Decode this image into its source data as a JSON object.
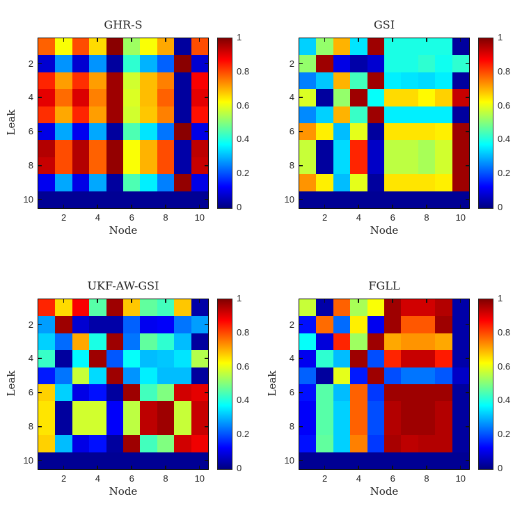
{
  "figure": {
    "background": "#ffffff",
    "axis_color": "#262626",
    "colormap": "jet",
    "x_ticks": [
      2,
      4,
      6,
      8,
      10
    ],
    "y_ticks": [
      2,
      4,
      6,
      8,
      10
    ],
    "colorbar_ticks": [
      {
        "value": 0,
        "label": "0"
      },
      {
        "value": 0.2,
        "label": "0.2"
      },
      {
        "value": 0.4,
        "label": "0.4"
      },
      {
        "value": 0.6,
        "label": "0.6"
      },
      {
        "value": 0.8,
        "label": "0.8"
      },
      {
        "value": 1,
        "label": "1"
      }
    ]
  },
  "chart_data": [
    {
      "type": "heatmap",
      "title": "GHR-S",
      "xlabel": "Node",
      "ylabel": "Leak",
      "x_range": [
        1,
        10
      ],
      "y_range": [
        1,
        10
      ],
      "zlim": [
        0,
        1
      ],
      "colormap": "jet",
      "values": [
        [
          0.78,
          0.62,
          0.8,
          0.66,
          0.99,
          0.53,
          0.62,
          0.71,
          0.03,
          0.8
        ],
        [
          0.08,
          0.27,
          0.08,
          0.27,
          0.03,
          0.42,
          0.3,
          0.22,
          0.99,
          0.08
        ],
        [
          0.84,
          0.72,
          0.83,
          0.72,
          0.97,
          0.58,
          0.69,
          0.75,
          0.03,
          0.88
        ],
        [
          0.9,
          0.77,
          0.91,
          0.75,
          0.97,
          0.59,
          0.69,
          0.78,
          0.03,
          0.9
        ],
        [
          0.83,
          0.71,
          0.84,
          0.72,
          0.97,
          0.58,
          0.68,
          0.75,
          0.03,
          0.86
        ],
        [
          0.1,
          0.29,
          0.11,
          0.29,
          0.03,
          0.45,
          0.35,
          0.24,
          0.99,
          0.1
        ],
        [
          0.95,
          0.8,
          0.95,
          0.78,
          0.98,
          0.62,
          0.7,
          0.8,
          0.04,
          0.94
        ],
        [
          0.93,
          0.8,
          0.95,
          0.78,
          0.98,
          0.62,
          0.7,
          0.8,
          0.04,
          0.93
        ],
        [
          0.11,
          0.29,
          0.1,
          0.29,
          0.03,
          0.45,
          0.36,
          0.25,
          0.98,
          0.1
        ],
        [
          0.02,
          0.02,
          0.02,
          0.02,
          0.02,
          0.02,
          0.02,
          0.02,
          0.02,
          0.02
        ]
      ]
    },
    {
      "type": "heatmap",
      "title": "GSI",
      "xlabel": "Node",
      "ylabel": "",
      "x_range": [
        1,
        10
      ],
      "y_range": [
        1,
        10
      ],
      "zlim": [
        0,
        1
      ],
      "colormap": "jet",
      "values": [
        [
          0.33,
          0.52,
          0.7,
          0.35,
          0.97,
          0.4,
          0.4,
          0.4,
          0.4,
          0.03
        ],
        [
          0.52,
          0.97,
          0.1,
          0.04,
          0.08,
          0.4,
          0.4,
          0.42,
          0.39,
          0.42
        ],
        [
          0.25,
          0.32,
          0.7,
          0.44,
          0.97,
          0.36,
          0.35,
          0.34,
          0.36,
          0.03
        ],
        [
          0.59,
          0.03,
          0.52,
          0.97,
          0.38,
          0.66,
          0.66,
          0.63,
          0.67,
          0.93
        ],
        [
          0.26,
          0.33,
          0.7,
          0.43,
          0.97,
          0.36,
          0.36,
          0.36,
          0.36,
          0.03
        ],
        [
          0.73,
          0.64,
          0.31,
          0.6,
          0.03,
          0.65,
          0.65,
          0.65,
          0.64,
          0.97
        ],
        [
          0.57,
          0.03,
          0.34,
          0.84,
          0.07,
          0.56,
          0.56,
          0.54,
          0.58,
          0.97
        ],
        [
          0.57,
          0.03,
          0.34,
          0.84,
          0.07,
          0.56,
          0.56,
          0.54,
          0.58,
          0.97
        ],
        [
          0.73,
          0.64,
          0.31,
          0.6,
          0.03,
          0.65,
          0.65,
          0.65,
          0.64,
          0.97
        ],
        [
          0.02,
          0.02,
          0.02,
          0.02,
          0.02,
          0.02,
          0.02,
          0.02,
          0.02,
          0.02
        ]
      ]
    },
    {
      "type": "heatmap",
      "title": "UKF-AW-GSI",
      "xlabel": "Node",
      "ylabel": "Leak",
      "x_range": [
        1,
        10
      ],
      "y_range": [
        1,
        10
      ],
      "zlim": [
        0,
        1
      ],
      "colormap": "jet",
      "values": [
        [
          0.84,
          0.66,
          0.88,
          0.46,
          0.97,
          0.68,
          0.47,
          0.44,
          0.68,
          0.04
        ],
        [
          0.28,
          0.97,
          0.08,
          0.04,
          0.04,
          0.22,
          0.11,
          0.12,
          0.24,
          0.28
        ],
        [
          0.33,
          0.23,
          0.71,
          0.4,
          0.97,
          0.24,
          0.47,
          0.42,
          0.31,
          0.03
        ],
        [
          0.43,
          0.03,
          0.37,
          0.97,
          0.21,
          0.38,
          0.31,
          0.32,
          0.35,
          0.55
        ],
        [
          0.15,
          0.24,
          0.57,
          0.34,
          0.97,
          0.27,
          0.36,
          0.31,
          0.31,
          0.03
        ],
        [
          0.67,
          0.33,
          0.1,
          0.14,
          0.03,
          0.97,
          0.44,
          0.5,
          0.92,
          0.9
        ],
        [
          0.65,
          0.03,
          0.58,
          0.58,
          0.12,
          0.56,
          0.94,
          0.97,
          0.57,
          0.93
        ],
        [
          0.65,
          0.03,
          0.58,
          0.58,
          0.12,
          0.56,
          0.94,
          0.97,
          0.57,
          0.93
        ],
        [
          0.67,
          0.31,
          0.1,
          0.14,
          0.03,
          0.97,
          0.44,
          0.5,
          0.92,
          0.89
        ],
        [
          0.02,
          0.02,
          0.02,
          0.02,
          0.02,
          0.02,
          0.02,
          0.02,
          0.02,
          0.02
        ]
      ]
    },
    {
      "type": "heatmap",
      "title": "FGLL",
      "xlabel": "Node",
      "ylabel": "Leak",
      "x_range": [
        1,
        10
      ],
      "y_range": [
        1,
        10
      ],
      "zlim": [
        0,
        1
      ],
      "colormap": "jet",
      "values": [
        [
          0.57,
          0.04,
          0.78,
          0.54,
          0.62,
          0.97,
          0.92,
          0.92,
          0.95,
          0.04
        ],
        [
          0.14,
          0.77,
          0.23,
          0.64,
          0.11,
          0.97,
          0.79,
          0.79,
          0.97,
          0.04
        ],
        [
          0.38,
          0.09,
          0.84,
          0.53,
          0.97,
          0.71,
          0.73,
          0.73,
          0.71,
          0.04
        ],
        [
          0.11,
          0.42,
          0.31,
          0.97,
          0.2,
          0.84,
          0.93,
          0.93,
          0.85,
          0.04
        ],
        [
          0.22,
          0.03,
          0.6,
          0.15,
          0.97,
          0.2,
          0.24,
          0.24,
          0.21,
          0.07
        ],
        [
          0.14,
          0.46,
          0.31,
          0.78,
          0.18,
          0.97,
          0.97,
          0.97,
          0.97,
          0.03
        ],
        [
          0.12,
          0.46,
          0.33,
          0.78,
          0.2,
          0.95,
          0.97,
          0.97,
          0.95,
          0.03
        ],
        [
          0.12,
          0.46,
          0.33,
          0.78,
          0.2,
          0.95,
          0.97,
          0.97,
          0.95,
          0.03
        ],
        [
          0.14,
          0.47,
          0.33,
          0.75,
          0.18,
          0.96,
          0.94,
          0.95,
          0.95,
          0.03
        ],
        [
          0.02,
          0.02,
          0.02,
          0.02,
          0.02,
          0.02,
          0.02,
          0.02,
          0.02,
          0.02
        ]
      ]
    }
  ]
}
